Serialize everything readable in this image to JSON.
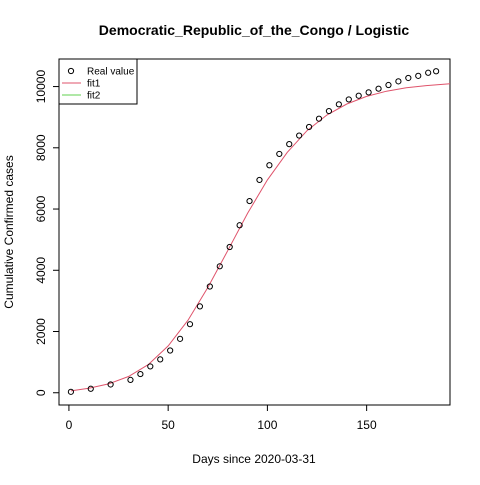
{
  "chart_data": {
    "type": "scatter",
    "title": "Democratic_Republic_of_the_Congo / Logistic",
    "xlabel": "Days since 2020-03-31",
    "ylabel": "Cumulative Confirmed cases",
    "xlim": [
      -5,
      192
    ],
    "ylim": [
      -400,
      10900
    ],
    "x_ticks": [
      0,
      50,
      100,
      150
    ],
    "y_ticks": [
      0,
      2000,
      4000,
      6000,
      8000,
      10000
    ],
    "grid": false,
    "legend": {
      "position": "top-left",
      "entries": [
        {
          "label": "Real value",
          "symbol": "circle",
          "color": "#000000"
        },
        {
          "label": "fit1",
          "symbol": "line",
          "color": "#DF536B"
        },
        {
          "label": "fit2",
          "symbol": "line",
          "color": "#61D04F"
        }
      ]
    },
    "series": [
      {
        "name": "Real value",
        "kind": "points",
        "color": "#000000",
        "x": [
          1,
          11,
          21,
          31,
          36,
          41,
          46,
          51,
          56,
          61,
          66,
          71,
          76,
          81,
          86,
          91,
          96,
          101,
          106,
          111,
          116,
          121,
          126,
          131,
          136,
          141,
          146,
          151,
          156,
          161,
          166,
          171,
          176,
          181,
          185
        ],
        "y": [
          30,
          130,
          270,
          420,
          610,
          860,
          1090,
          1380,
          1760,
          2240,
          2820,
          3470,
          4130,
          4760,
          5470,
          6260,
          6950,
          7430,
          7800,
          8120,
          8400,
          8680,
          8950,
          9200,
          9420,
          9580,
          9700,
          9810,
          9930,
          10050,
          10170,
          10280,
          10350,
          10450,
          10500
        ]
      },
      {
        "name": "fit1",
        "kind": "line",
        "color": "#DF536B",
        "x": [
          1,
          10,
          20,
          30,
          40,
          50,
          60,
          70,
          80,
          90,
          100,
          110,
          120,
          130,
          140,
          150,
          160,
          170,
          180,
          192
        ],
        "y": [
          60,
          150,
          290,
          530,
          920,
          1530,
          2370,
          3440,
          4640,
          5860,
          6950,
          7850,
          8560,
          9070,
          9430,
          9680,
          9850,
          9960,
          10030,
          10090
        ]
      },
      {
        "name": "fit2",
        "kind": "line",
        "color": "#61D04F",
        "x": [],
        "y": []
      }
    ]
  }
}
